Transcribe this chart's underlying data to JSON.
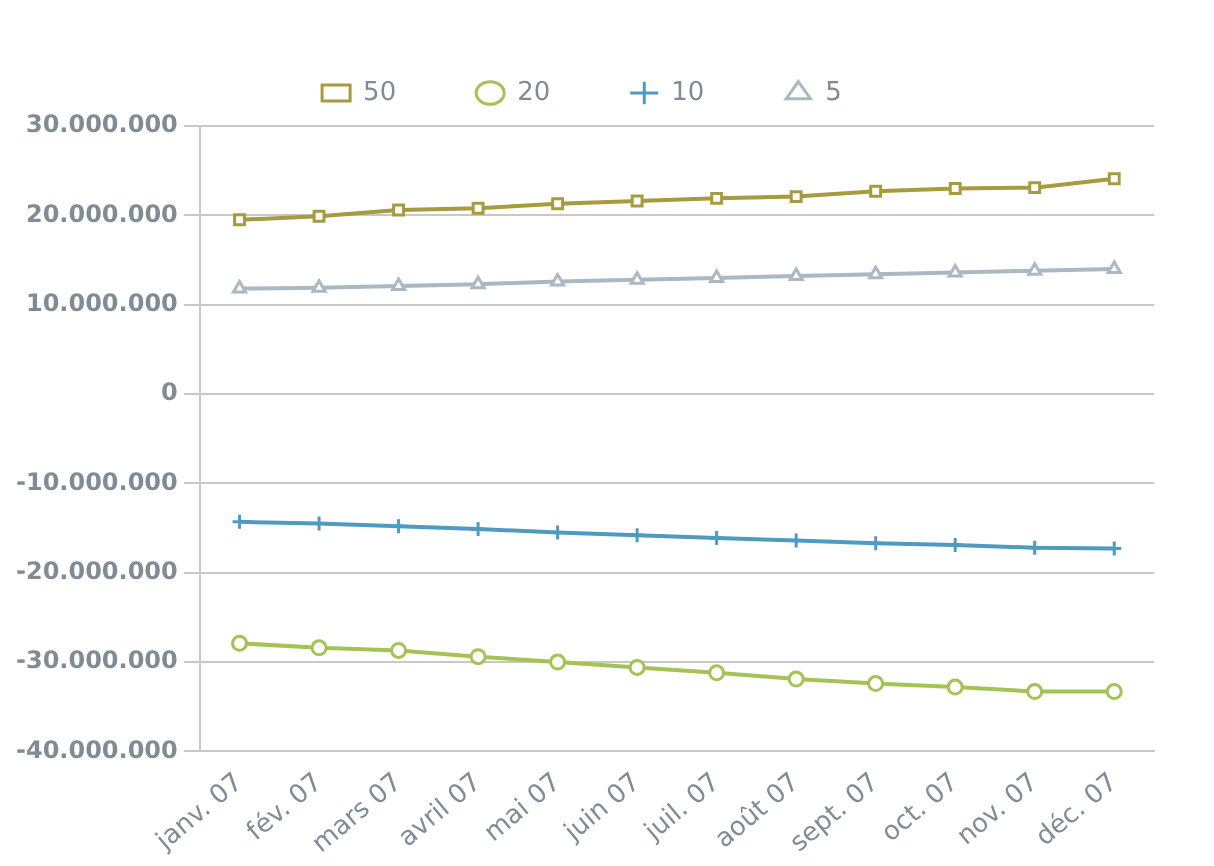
{
  "chart_data": {
    "type": "line",
    "categories": [
      "janv. 07",
      "fév. 07",
      "mars 07",
      "avril 07",
      "mai 07",
      "juin 07",
      "juil. 07",
      "août 07",
      "sept. 07",
      "oct. 07",
      "nov. 07",
      "déc. 07"
    ],
    "series": [
      {
        "name": "50",
        "color": "#a89a3e",
        "marker": "square",
        "values": [
          19500000,
          19900000,
          20600000,
          20800000,
          21300000,
          21600000,
          21900000,
          22100000,
          22700000,
          23000000,
          23100000,
          24100000
        ]
      },
      {
        "name": "20",
        "color": "#a5c255",
        "marker": "circle",
        "values": [
          -27900000,
          -28400000,
          -28700000,
          -29400000,
          -30000000,
          -30600000,
          -31200000,
          -31900000,
          -32400000,
          -32800000,
          -33300000,
          -33300000
        ]
      },
      {
        "name": "10",
        "color": "#4e9ac0",
        "marker": "cross",
        "values": [
          -14300000,
          -14500000,
          -14800000,
          -15100000,
          -15500000,
          -15800000,
          -16100000,
          -16400000,
          -16700000,
          -16900000,
          -17200000,
          -17300000
        ]
      },
      {
        "name": "5",
        "color": "#a9b8c2",
        "marker": "triangle",
        "values": [
          11800000,
          11900000,
          12100000,
          12300000,
          12600000,
          12800000,
          13000000,
          13200000,
          13400000,
          13600000,
          13800000,
          14000000
        ]
      }
    ],
    "ylim": [
      -40000000,
      30000000
    ],
    "yticks": [
      {
        "value": -40000000,
        "label": "-40.000.000"
      },
      {
        "value": -30000000,
        "label": "-30.000.000"
      },
      {
        "value": -20000000,
        "label": "-20.000.000"
      },
      {
        "value": -10000000,
        "label": "-10.000.000"
      },
      {
        "value": 0,
        "label": "0"
      },
      {
        "value": 10000000,
        "label": "10.000.000"
      },
      {
        "value": 20000000,
        "label": "20.000.000"
      },
      {
        "value": 30000000,
        "label": "30.000.000"
      }
    ],
    "grid": "y",
    "legend": "top",
    "line_style": "solid"
  }
}
